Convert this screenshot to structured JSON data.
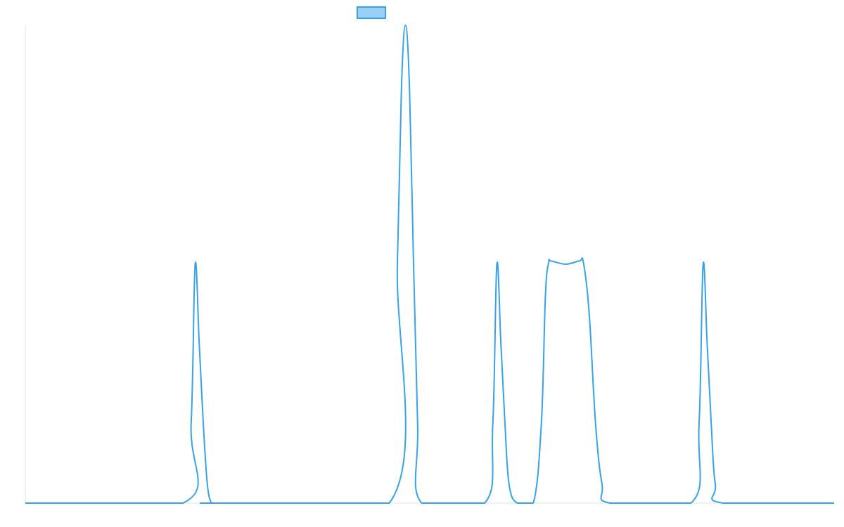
{
  "chart_data": {
    "type": "line",
    "title": "",
    "xlabel": "",
    "ylabel": "",
    "grid": false,
    "legend_position": "top-center",
    "xlim": [
      0,
      100
    ],
    "ylim": [
      0,
      3
    ],
    "series": [
      {
        "name": "",
        "color": "#36a2eb",
        "fill_color": "#9ad0f5",
        "x": [
          0,
          19.5,
          20.5,
          21.0,
          21.5,
          22.0,
          22.5,
          23.0,
          23.5,
          45.0,
          46.0,
          46.5,
          47.0,
          47.5,
          48.0,
          48.5,
          49.0,
          56.8,
          57.8,
          58.3,
          58.8,
          59.3,
          59.8,
          60.8,
          62.8,
          63.8,
          64.3,
          64.7,
          65.0,
          66.8,
          68.5,
          69.0,
          69.7,
          70.5,
          71.3,
          72.3,
          82.3,
          83.3,
          83.8,
          84.3,
          84.8,
          85.3,
          86.3,
          100
        ],
        "y": [
          0,
          0,
          0.5,
          1.5,
          1.0,
          0.5,
          0.12,
          0,
          0,
          0,
          1.5,
          2.6,
          3.0,
          2.6,
          1.5,
          0.5,
          0,
          0,
          0.5,
          1.5,
          1.0,
          0.5,
          0.12,
          0,
          0,
          0.5,
          1.3,
          1.51,
          1.52,
          1.5,
          1.52,
          1.51,
          1.2,
          0.5,
          0.12,
          0,
          0,
          0.5,
          1.5,
          1.0,
          0.5,
          0.12,
          0,
          0
        ]
      }
    ]
  }
}
